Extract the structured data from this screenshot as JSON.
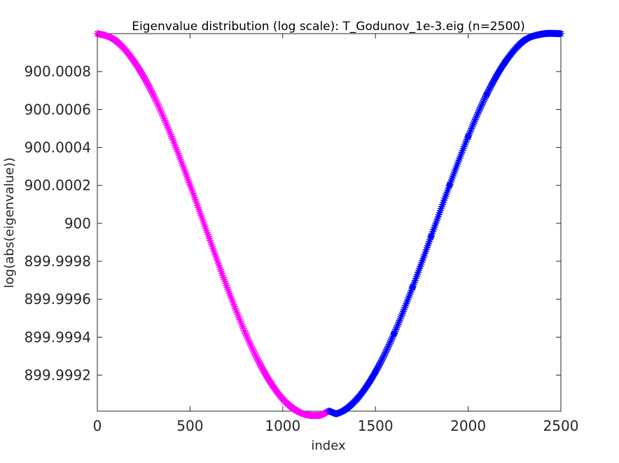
{
  "chart_data": {
    "type": "scatter",
    "title": "Eigenvalue distribution (log scale): T_Godunov_1e-3.eig (n=2500)",
    "xlabel": "index",
    "ylabel": "log(abs(eigenvalue))",
    "xlim": [
      0,
      2500
    ],
    "ylim": [
      899.99901,
      900.001
    ],
    "xticks": [
      0,
      500,
      1000,
      1500,
      2000,
      2500
    ],
    "xtick_labels": [
      "0",
      "500",
      "1000",
      "1500",
      "2000",
      "2500"
    ],
    "yticks": [
      899.9992,
      899.9994,
      899.9996,
      899.9998,
      900,
      900.0002,
      900.0004,
      900.0006,
      900.0008
    ],
    "ytick_labels": [
      "899.9992",
      "899.9994",
      "899.9996",
      "899.9998",
      "900",
      "900.0002",
      "900.0004",
      "900.0006",
      "900.0008"
    ],
    "grid": false,
    "marker": "*",
    "series": [
      {
        "color": "#ff00ff",
        "x": [
          0,
          100,
          200,
          300,
          400,
          500,
          600,
          700,
          800,
          900,
          1000,
          1100,
          1200,
          1250
        ],
        "y": [
          900.001,
          900.000962,
          900.000851,
          900.00068,
          900.000458,
          900.000202,
          899.999931,
          899.999663,
          899.999418,
          899.999217,
          899.999074,
          899.999,
          899.998988,
          899.99901
        ]
      },
      {
        "color": "#0000ff",
        "x": [
          1250,
          1300,
          1400,
          1500,
          1600,
          1700,
          1800,
          1900,
          2000,
          2100,
          2200,
          2300,
          2400,
          2500
        ],
        "y": [
          899.99901,
          899.999,
          899.999074,
          899.999217,
          899.999418,
          899.999663,
          899.999931,
          900.000202,
          900.000458,
          900.00068,
          900.000851,
          900.000962,
          900.000998,
          900.001
        ]
      }
    ]
  }
}
